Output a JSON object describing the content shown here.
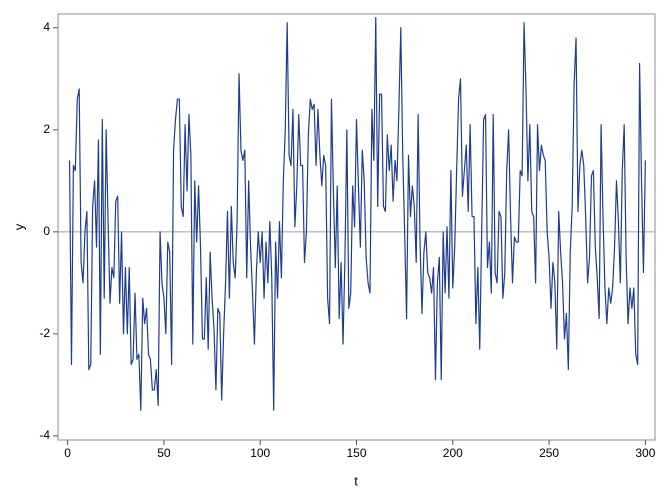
{
  "chart_data": {
    "type": "line",
    "xlabel": "t",
    "ylabel": "y",
    "xlim": [
      -5,
      305
    ],
    "ylim": [
      -4.08,
      4.27
    ],
    "xticks": [
      0,
      50,
      100,
      150,
      200,
      250,
      300
    ],
    "yticks": [
      -4,
      -2,
      0,
      2,
      4
    ],
    "reference_line": 0,
    "x": [
      1,
      2,
      3,
      4,
      5,
      6,
      7,
      8,
      9,
      10,
      11,
      12,
      13,
      14,
      15,
      16,
      17,
      18,
      19,
      20,
      21,
      22,
      23,
      24,
      25,
      26,
      27,
      28,
      29,
      30,
      31,
      32,
      33,
      34,
      35,
      36,
      37,
      38,
      39,
      40,
      41,
      42,
      43,
      44,
      45,
      46,
      47,
      48,
      49,
      50,
      51,
      52,
      53,
      54,
      55,
      56,
      57,
      58,
      59,
      60,
      61,
      62,
      63,
      64,
      65,
      66,
      67,
      68,
      69,
      70,
      71,
      72,
      73,
      74,
      75,
      76,
      77,
      78,
      79,
      80,
      81,
      82,
      83,
      84,
      85,
      86,
      87,
      88,
      89,
      90,
      91,
      92,
      93,
      94,
      95,
      96,
      97,
      98,
      99,
      100,
      101,
      102,
      103,
      104,
      105,
      106,
      107,
      108,
      109,
      110,
      111,
      112,
      113,
      114,
      115,
      116,
      117,
      118,
      119,
      120,
      121,
      122,
      123,
      124,
      125,
      126,
      127,
      128,
      129,
      130,
      131,
      132,
      133,
      134,
      135,
      136,
      137,
      138,
      139,
      140,
      141,
      142,
      143,
      144,
      145,
      146,
      147,
      148,
      149,
      150,
      151,
      152,
      153,
      154,
      155,
      156,
      157,
      158,
      159,
      160,
      161,
      162,
      163,
      164,
      165,
      166,
      167,
      168,
      169,
      170,
      171,
      172,
      173,
      174,
      175,
      176,
      177,
      178,
      179,
      180,
      181,
      182,
      183,
      184,
      185,
      186,
      187,
      188,
      189,
      190,
      191,
      192,
      193,
      194,
      195,
      196,
      197,
      198,
      199,
      200,
      201,
      202,
      203,
      204,
      205,
      206,
      207,
      208,
      209,
      210,
      211,
      212,
      213,
      214,
      215,
      216,
      217,
      218,
      219,
      220,
      221,
      222,
      223,
      224,
      225,
      226,
      227,
      228,
      229,
      230,
      231,
      232,
      233,
      234,
      235,
      236,
      237,
      238,
      239,
      240,
      241,
      242,
      243,
      244,
      245,
      246,
      247,
      248,
      249,
      250,
      251,
      252,
      253,
      254,
      255,
      256,
      257,
      258,
      259,
      260,
      261,
      262,
      263,
      264,
      265,
      266,
      267,
      268,
      269,
      270,
      271,
      272,
      273,
      274,
      275,
      276,
      277,
      278,
      279,
      280,
      281,
      282,
      283,
      284,
      285,
      286,
      287,
      288,
      289,
      290,
      291,
      292,
      293,
      294,
      295,
      296,
      297,
      298,
      299,
      300
    ],
    "series": [
      {
        "name": "y",
        "color": "#1f3d8f",
        "values": [
          1.4,
          -2.6,
          1.3,
          1.2,
          2.6,
          2.8,
          -0.6,
          -1.0,
          0.0,
          0.4,
          -2.7,
          -2.6,
          0.5,
          1.0,
          -0.3,
          1.8,
          -2.4,
          2.2,
          -1.3,
          2.0,
          0.2,
          -1.4,
          -0.7,
          -0.9,
          0.6,
          0.7,
          -1.4,
          0.0,
          -2.0,
          -0.7,
          -2.0,
          -0.7,
          -2.6,
          -2.5,
          -1.2,
          -2.5,
          -2.4,
          -3.5,
          -1.3,
          -1.8,
          -1.5,
          -2.4,
          -2.5,
          -3.1,
          -3.1,
          -2.7,
          -3.4,
          0.0,
          -1.0,
          -1.3,
          -2.0,
          -0.2,
          -0.4,
          -2.6,
          1.6,
          2.2,
          2.6,
          2.6,
          0.5,
          0.3,
          2.1,
          0.8,
          2.3,
          1.5,
          -2.2,
          1.0,
          -0.2,
          0.9,
          -0.3,
          -2.1,
          -2.1,
          -0.9,
          -2.3,
          -0.4,
          -1.3,
          -1.9,
          -3.1,
          -1.5,
          -1.6,
          -3.3,
          -2.0,
          -1.0,
          0.4,
          -1.3,
          0.5,
          -0.6,
          -0.9,
          0.2,
          3.1,
          1.6,
          1.4,
          1.6,
          -0.9,
          1.0,
          -0.3,
          -1.2,
          -2.2,
          -0.8,
          0.0,
          -0.6,
          0.0,
          -1.3,
          -0.2,
          -1.0,
          0.2,
          -0.9,
          -3.5,
          -0.2,
          -1.3,
          0.2,
          -0.9,
          1.0,
          2.0,
          4.1,
          1.5,
          1.3,
          2.4,
          0.1,
          0.9,
          2.3,
          1.3,
          1.3,
          -0.6,
          0.0,
          1.9,
          2.6,
          2.4,
          2.5,
          1.3,
          2.4,
          1.5,
          0.9,
          1.5,
          1.3,
          -1.3,
          -1.8,
          2.6,
          0.8,
          -0.7,
          0.9,
          -1.7,
          -0.6,
          -2.2,
          -0.5,
          2.0,
          -1.5,
          -1.2,
          0.9,
          0.1,
          2.2,
          0.9,
          -0.3,
          1.6,
          1.0,
          -0.5,
          -1.0,
          -1.2,
          2.4,
          1.4,
          4.2,
          0.5,
          2.7,
          2.7,
          0.5,
          0.4,
          1.9,
          1.2,
          1.7,
          0.6,
          1.4,
          1.0,
          2.4,
          4.0,
          1.5,
          0.0,
          -1.7,
          1.5,
          0.3,
          0.9,
          0.5,
          -0.6,
          2.3,
          -0.2,
          -1.6,
          -0.4,
          0.0,
          -0.8,
          -0.9,
          -1.2,
          -0.7,
          -2.9,
          -1.0,
          -0.5,
          -2.9,
          0.0,
          -1.2,
          0.1,
          -1.3,
          1.2,
          -1.1,
          -0.3,
          1.2,
          2.6,
          3.0,
          0.7,
          1.2,
          1.7,
          0.4,
          2.1,
          0.3,
          0.3,
          -1.8,
          -0.7,
          -2.3,
          0.0,
          2.2,
          2.3,
          -0.7,
          -0.2,
          -1.2,
          2.3,
          -0.8,
          -1.0,
          0.4,
          0.3,
          -1.3,
          -0.8,
          1.2,
          2.0,
          0.3,
          -1.0,
          -0.1,
          -0.2,
          -0.2,
          1.2,
          1.1,
          4.1,
          2.8,
          1.0,
          2.1,
          0.4,
          0.3,
          -1.0,
          2.1,
          1.2,
          1.7,
          1.5,
          1.4,
          0.0,
          -0.5,
          -1.5,
          -0.6,
          -1.0,
          -2.3,
          0.4,
          -0.4,
          -1.0,
          -2.1,
          -1.6,
          -2.7,
          -0.4,
          0.5,
          2.9,
          3.8,
          0.4,
          1.3,
          1.6,
          1.3,
          0.3,
          -1.0,
          -0.5,
          1.1,
          1.2,
          -0.3,
          -0.9,
          -1.7,
          2.1,
          0.3,
          -1.1,
          -1.8,
          -1.1,
          -1.4,
          -1.1,
          -0.3,
          1.0,
          0.2,
          -1.0,
          1.2,
          2.1,
          -0.5,
          -1.8,
          -1.1,
          -1.5,
          -1.1,
          -2.4,
          -2.6,
          3.3,
          1.0,
          -0.8,
          1.4
        ]
      }
    ]
  }
}
